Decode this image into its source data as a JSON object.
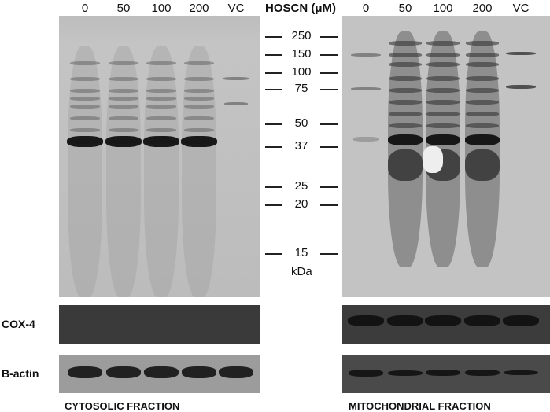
{
  "lanes": [
    "0",
    "50",
    "100",
    "200",
    "VC"
  ],
  "concentration_label": "HOSCN (μM)",
  "markers": [
    "250",
    "150",
    "100",
    "75",
    "50",
    "37",
    "25",
    "20",
    "15"
  ],
  "marker_unit": "kDa",
  "rows": {
    "cox4": "COX-4",
    "bactin": "B-actin"
  },
  "captions": {
    "left": "CYTOSOLIC FRACTION",
    "right": "MITOCHONDRIAL FRACTION"
  }
}
